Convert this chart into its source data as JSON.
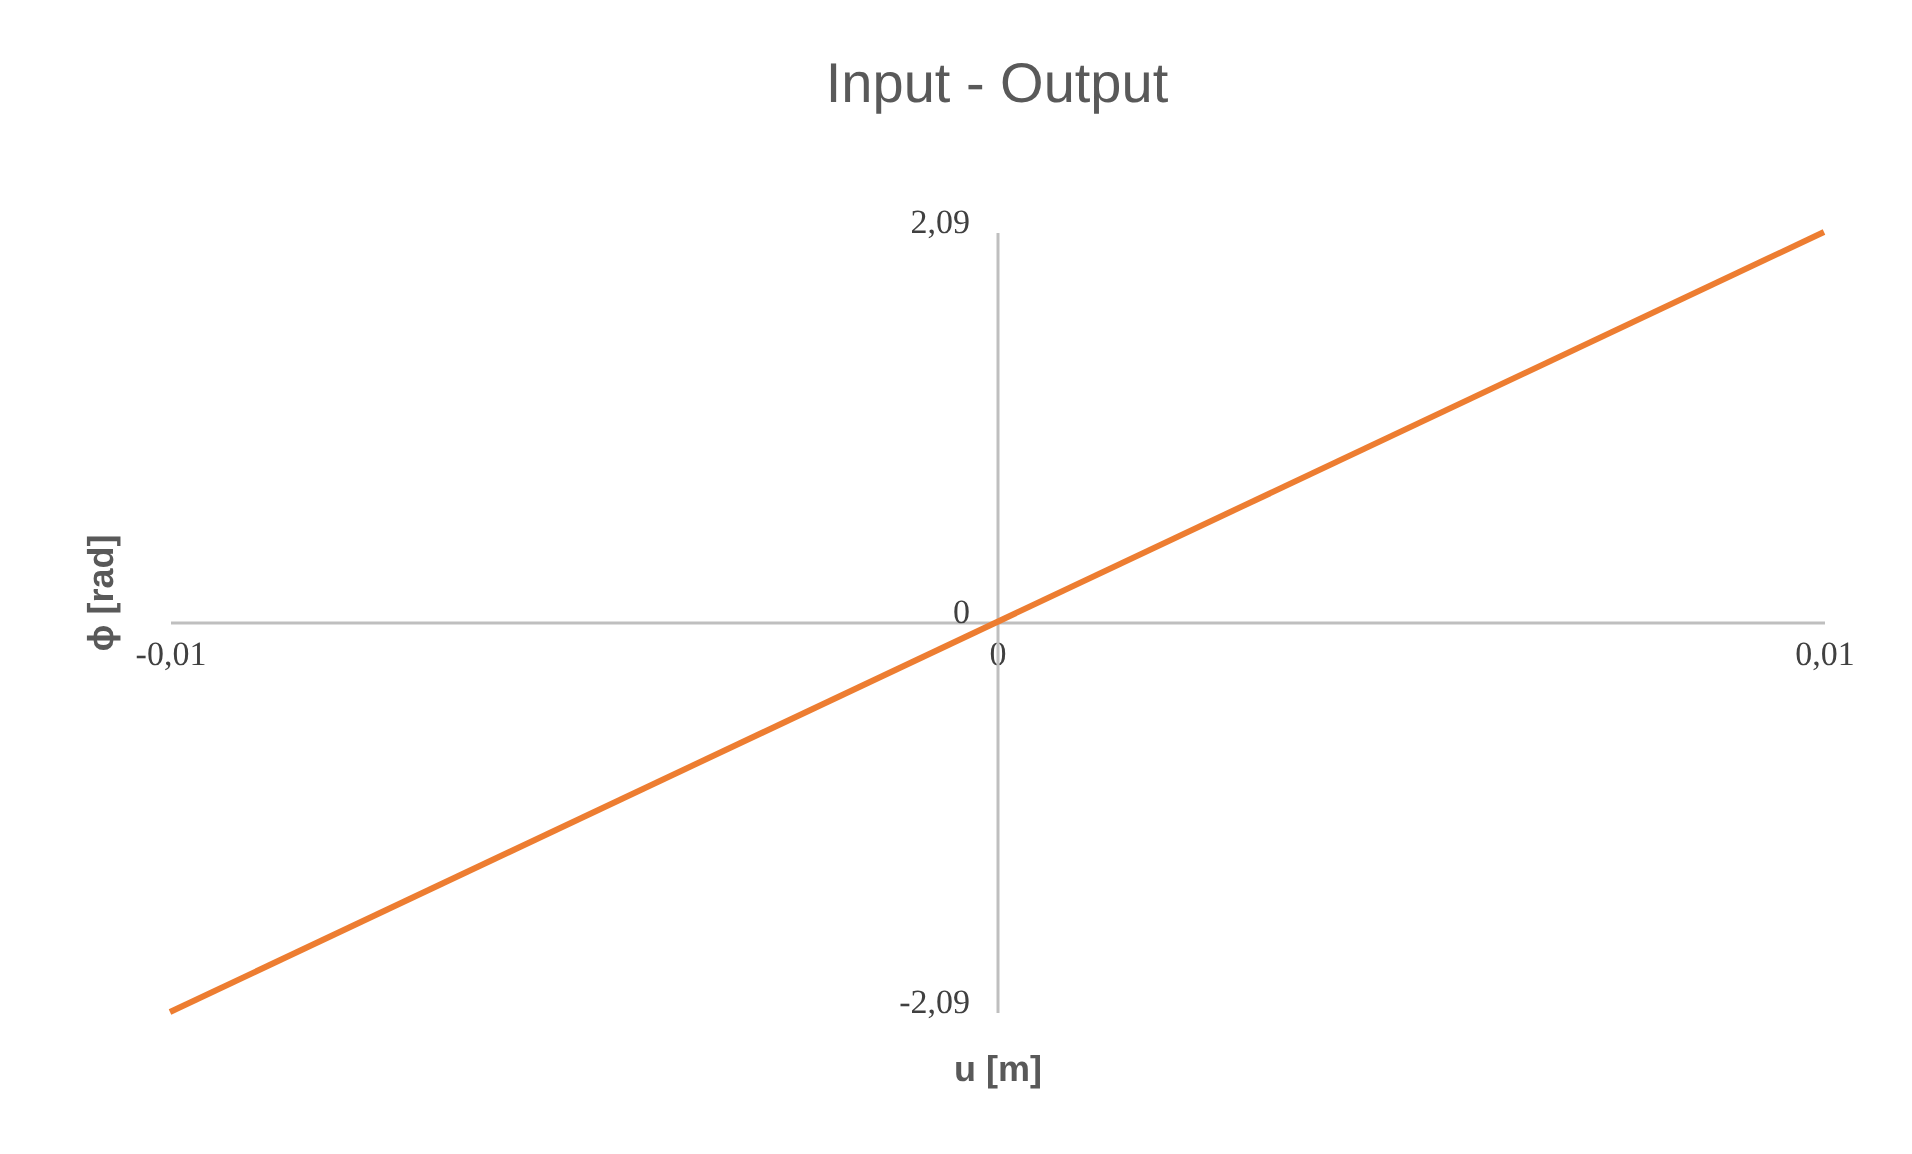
{
  "chart_data": {
    "type": "line",
    "title": "Input - Output",
    "xlabel": "u [m]",
    "ylabel": "ϕ [rad]",
    "x": [
      -0.01,
      0.01
    ],
    "series": [
      {
        "color": "#ed7d31",
        "values": [
          -2.09,
          2.09
        ]
      }
    ],
    "xlim": [
      -0.01,
      0.01
    ],
    "ylim": [
      -2.09,
      2.09
    ],
    "xticks": [
      {
        "value": -0.01,
        "label": "-0,01"
      },
      0,
      {
        "value": 0.01,
        "label": "0,01"
      }
    ],
    "yticks": [
      {
        "value": -2.09,
        "label": "-2,09"
      },
      0,
      {
        "value": 2.09,
        "label": "2,09"
      }
    ],
    "grid": false
  }
}
